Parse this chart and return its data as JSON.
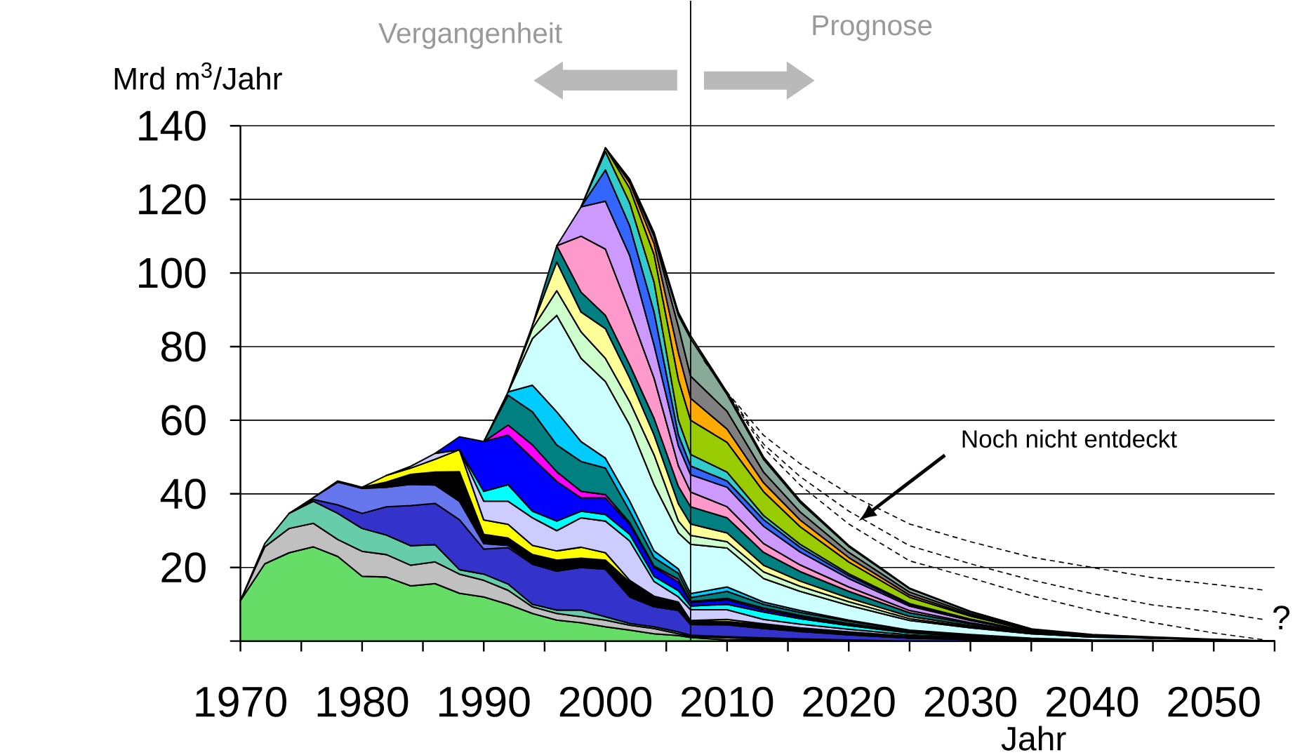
{
  "chart_data": {
    "type": "area",
    "stacked": true,
    "ylabel": "Mrd m$^{3}$/Jahr",
    "xlabel": "Jahr",
    "x": [
      1970,
      1972,
      1974,
      1976,
      1978,
      1980,
      1982,
      1984,
      1986,
      1988,
      1990,
      1992,
      1994,
      1996,
      1998,
      2000,
      2002,
      2004,
      2006,
      2007,
      2010,
      2013,
      2016,
      2020,
      2025,
      2030,
      2035,
      2040,
      2045,
      2050,
      2055
    ],
    "xlim": [
      1970,
      2055
    ],
    "xticks": [
      1970,
      {
        "value": 1975,
        "label": null
      },
      1980,
      {
        "value": 1985,
        "label": null
      },
      1990,
      {
        "value": 1995,
        "label": null
      },
      2000,
      {
        "value": 2005,
        "label": null
      },
      2010,
      {
        "value": 2015,
        "label": null
      },
      2020,
      {
        "value": 2025,
        "label": null
      },
      2030,
      {
        "value": 2035,
        "label": null
      },
      2040,
      {
        "value": 2045,
        "label": null
      },
      2050,
      {
        "value": 2055,
        "label": null
      }
    ],
    "ylim": [
      0,
      140
    ],
    "yticks": [
      {
        "value": 0,
        "label": null
      },
      20,
      40,
      60,
      80,
      100,
      120,
      140
    ],
    "grid": "y",
    "series": [
      {
        "color": "#66dd66",
        "values": [
          11,
          21,
          24,
          25.6,
          23,
          17.6,
          17.4,
          15,
          15.6,
          13,
          12,
          10,
          7.5,
          5.7,
          5,
          3.9,
          3,
          2,
          1.5,
          1,
          0.3,
          0.3,
          0.2,
          0.1,
          0,
          null,
          null,
          null,
          null,
          null,
          null
        ]
      },
      {
        "color": "#c0c0c0",
        "values": [
          0,
          4.6,
          6.6,
          6.4,
          4.6,
          6.8,
          6.1,
          5.6,
          5.9,
          5.2,
          4.5,
          3.8,
          1.8,
          1.8,
          1.6,
          1.8,
          1.3,
          1.4,
          0.5,
          0.3,
          0.6,
          0.3,
          0.2,
          0.1,
          0,
          null,
          null,
          null,
          null,
          null,
          null
        ]
      },
      {
        "color": "#66ccaa",
        "values": [
          0,
          0.9,
          4.1,
          6,
          7.1,
          6.2,
          5.3,
          5.3,
          4.7,
          1.2,
          1.7,
          1.7,
          0.7,
          0.9,
          1.8,
          0.9,
          0.5,
          0.5,
          0.5,
          0.3,
          0.3,
          0.3,
          0.2,
          0.1,
          0,
          null,
          null,
          null,
          null,
          null,
          null
        ]
      },
      {
        "color": "#3333cc",
        "values": [
          null,
          null,
          0,
          0.5,
          2.3,
          4.1,
          7.7,
          10.9,
          11.2,
          13.6,
          6.8,
          9.9,
          10.9,
          10.6,
          11.6,
          12.9,
          7.2,
          5.4,
          5.8,
          2.9,
          3.2,
          2.5,
          2,
          1.4,
          0.8,
          0.4,
          0.2,
          0.1,
          0,
          null,
          null
        ]
      },
      {
        "color": "#6677ee",
        "values": [
          null,
          null,
          0,
          0.5,
          6.2,
          6.8,
          5.3,
          5.8,
          5,
          5,
          1.5,
          0.6,
          0.4,
          0.4,
          0.4,
          0.4,
          0.3,
          0.2,
          0.2,
          0.1,
          0.2,
          0.2,
          0.1,
          0.1,
          0,
          null,
          null,
          null,
          null,
          null,
          null
        ]
      },
      {
        "color": "#000000",
        "values": [
          null,
          null,
          null,
          0,
          0.3,
          0.3,
          1.4,
          2.7,
          3.5,
          8,
          2.5,
          2,
          2.2,
          2.6,
          2.1,
          2.1,
          3.7,
          2.5,
          1.9,
          0.9,
          0.7,
          0.8,
          0.7,
          0.6,
          0.5,
          0.4,
          0.3,
          0.2,
          0.2,
          0.1,
          0
        ]
      },
      {
        "color": "#ffff00",
        "values": [
          null,
          null,
          null,
          null,
          null,
          0,
          1.8,
          1.7,
          3.5,
          6,
          3.9,
          3.7,
          2.5,
          2.5,
          3,
          2,
          0.5,
          0.2,
          0.2,
          0.1,
          0.6,
          0.3,
          0.2,
          0.1,
          0,
          null,
          null,
          null,
          null,
          null,
          null
        ]
      },
      {
        "color": "#ccccff",
        "values": [
          null,
          null,
          null,
          null,
          null,
          null,
          0,
          0.5,
          1.6,
          0,
          5.1,
          6.3,
          7.5,
          5.5,
          8,
          8.6,
          10.7,
          4,
          1.4,
          2.9,
          2.6,
          1.2,
          1,
          0.7,
          0.4,
          0.2,
          0.1,
          0,
          null,
          null,
          null
        ]
      },
      {
        "color": "#00ffff",
        "values": [
          null,
          null,
          null,
          null,
          null,
          null,
          null,
          null,
          null,
          0,
          2.7,
          4.5,
          1.8,
          2.6,
          1.8,
          1.8,
          1.8,
          1.4,
          1.7,
          1,
          1.5,
          2,
          1.5,
          1,
          0.5,
          0.3,
          0.1,
          0,
          null,
          null,
          null
        ]
      },
      {
        "color": "#0000ff",
        "values": [
          null,
          null,
          null,
          null,
          null,
          null,
          null,
          null,
          0,
          3.5,
          13.5,
          13.5,
          14.4,
          10.8,
          3.6,
          4.5,
          2.7,
          2.4,
          2.3,
          1,
          1.2,
          0.6,
          0.5,
          0.3,
          0.2,
          0.1,
          0,
          null,
          null,
          null,
          null
        ]
      },
      {
        "color": "#ff00ff",
        "values": [
          null,
          null,
          null,
          null,
          null,
          null,
          null,
          null,
          null,
          null,
          0,
          2.7,
          3.6,
          2.6,
          1.8,
          0.9,
          0.5,
          0.4,
          0.8,
          0.3,
          0.4,
          0.5,
          0.4,
          0.3,
          0.1,
          0.1,
          0,
          null,
          null,
          null,
          null
        ]
      },
      {
        "color": "#008080",
        "values": [
          null,
          null,
          null,
          null,
          null,
          null,
          null,
          null,
          null,
          null,
          0,
          8.1,
          9,
          7.3,
          8.1,
          7.2,
          3.1,
          2.3,
          1.6,
          1,
          1.9,
          1,
          0.8,
          0.6,
          0.3,
          0.2,
          0.1,
          0,
          null,
          null,
          null
        ]
      },
      {
        "color": "#00ccff",
        "values": [
          null,
          null,
          null,
          null,
          null,
          null,
          null,
          null,
          null,
          null,
          0,
          0.9,
          7.2,
          9,
          5.4,
          2.7,
          2.7,
          1.8,
          1.2,
          1.1,
          1.2,
          0.6,
          0.5,
          0.3,
          0.2,
          0.1,
          0,
          null,
          null,
          null,
          null
        ]
      },
      {
        "color": "#ccffff",
        "values": [
          null,
          null,
          null,
          null,
          null,
          null,
          null,
          null,
          null,
          null,
          null,
          0,
          12.7,
          26.2,
          22.6,
          20.8,
          20.7,
          18,
          9.8,
          13.4,
          10.6,
          6.4,
          5.2,
          4,
          2.6,
          1.8,
          1.2,
          0.8,
          0.6,
          0.3,
          0
        ]
      },
      {
        "color": "#ccffcc",
        "values": [
          null,
          null,
          null,
          null,
          null,
          null,
          null,
          null,
          null,
          null,
          null,
          0,
          2.7,
          6.7,
          7.2,
          6.3,
          6.3,
          8.1,
          3.2,
          2.4,
          1.7,
          1.8,
          1.4,
          1,
          0.5,
          0.3,
          0,
          null,
          null,
          null,
          null
        ]
      },
      {
        "color": "#ffff99",
        "values": [
          null,
          null,
          null,
          null,
          null,
          null,
          null,
          null,
          null,
          null,
          null,
          0,
          0.9,
          7.8,
          5.4,
          8.1,
          6.4,
          5.4,
          4.7,
          3.1,
          2.4,
          1.8,
          1.4,
          1,
          0.6,
          0.3,
          0.1,
          0,
          null,
          null,
          null
        ]
      },
      {
        "color": "#008080",
        "values": [
          null,
          null,
          null,
          null,
          null,
          null,
          null,
          null,
          null,
          null,
          null,
          null,
          0,
          4.4,
          5.4,
          3.6,
          3.6,
          4.5,
          4.7,
          4.7,
          4.1,
          3.5,
          2.6,
          1.8,
          1,
          0.5,
          0.2,
          0.1,
          0,
          null,
          null
        ]
      },
      {
        "color": "#ff99cc",
        "values": [
          null,
          null,
          null,
          null,
          null,
          null,
          null,
          null,
          null,
          null,
          null,
          null,
          null,
          0,
          15.2,
          18,
          14.4,
          10.9,
          5.6,
          4,
          3,
          2.4,
          1.8,
          1.2,
          0.6,
          0.3,
          0,
          null,
          null,
          null,
          null
        ]
      },
      {
        "color": "#cc99ff",
        "values": [
          null,
          null,
          null,
          null,
          null,
          null,
          null,
          null,
          null,
          null,
          null,
          null,
          null,
          0,
          8,
          13,
          15.3,
          9,
          5.4,
          4.7,
          5.3,
          4.7,
          3.5,
          2.3,
          1.2,
          0.6,
          0.2,
          0.1,
          0,
          null,
          null
        ]
      },
      {
        "color": "#3366ff",
        "values": [
          null,
          null,
          null,
          null,
          null,
          null,
          null,
          null,
          null,
          null,
          null,
          null,
          null,
          null,
          0,
          8.5,
          8.1,
          9,
          3,
          2.4,
          1.7,
          1.8,
          1.3,
          0.8,
          0.4,
          0.2,
          0,
          null,
          null,
          null,
          null
        ]
      },
      {
        "color": "#33cccc",
        "values": [
          null,
          null,
          null,
          null,
          null,
          null,
          null,
          null,
          null,
          null,
          null,
          null,
          null,
          null,
          0,
          5,
          6.2,
          8.1,
          4,
          3.1,
          2.4,
          1.1,
          0.8,
          0.5,
          0.3,
          0.2,
          0,
          null,
          null,
          null,
          null
        ]
      },
      {
        "color": "#99cc00",
        "values": [
          null,
          null,
          null,
          null,
          null,
          null,
          null,
          null,
          null,
          null,
          null,
          null,
          null,
          null,
          0,
          1,
          4,
          7.5,
          11,
          9.3,
          8.1,
          6.5,
          4.8,
          3.2,
          1.7,
          0.8,
          0.3,
          0.2,
          0.1,
          0,
          null
        ]
      },
      {
        "color": "#ffaa00",
        "values": [
          null,
          null,
          null,
          null,
          null,
          null,
          null,
          null,
          null,
          null,
          null,
          null,
          null,
          null,
          null,
          0,
          1.5,
          3,
          7.3,
          6,
          3.6,
          2.4,
          1.8,
          1.2,
          0.6,
          0.3,
          0,
          null,
          null,
          null,
          null
        ]
      },
      {
        "color": "#808080",
        "values": [
          null,
          null,
          null,
          null,
          null,
          null,
          null,
          null,
          null,
          null,
          null,
          null,
          null,
          null,
          null,
          0,
          0.5,
          2,
          7.1,
          6,
          4.8,
          2.9,
          2.2,
          1.4,
          0.8,
          0.4,
          0.2,
          0.1,
          0,
          null,
          null
        ]
      },
      {
        "color": "#88aa99",
        "values": [
          null,
          null,
          null,
          null,
          null,
          null,
          null,
          null,
          null,
          null,
          null,
          null,
          null,
          null,
          null,
          null,
          0,
          0.5,
          3.1,
          10.2,
          4.6,
          3.5,
          2.6,
          1.6,
          0.9,
          0.5,
          0.3,
          0.2,
          0.2,
          0.1,
          0
        ]
      },
      {
        "color": "#c0c0c0",
        "values": [
          null,
          null,
          null,
          null,
          null,
          null,
          null,
          null,
          null,
          null,
          null,
          null,
          null,
          null,
          null,
          0,
          0.5,
          0.5,
          0.8,
          0.8,
          0.6,
          0.6,
          0.5,
          0.3,
          0.2,
          0.1,
          0,
          null,
          null,
          null,
          null
        ]
      },
      {
        "type": "line",
        "color": "#000000",
        "line_style": "dashed",
        "x": [
          2008,
          2010,
          2013,
          2016,
          2020,
          2025,
          2030,
          2035,
          2040,
          2045,
          2050,
          2054
        ],
        "values": [
          76.7,
          67.6,
          55.9,
          48.2,
          40,
          31.8,
          27,
          22.8,
          20,
          17.2,
          15.4,
          13.9
        ]
      },
      {
        "type": "line",
        "color": "#000000",
        "line_style": "dashed",
        "x": [
          2008,
          2010,
          2013,
          2016,
          2020,
          2025,
          2030,
          2035,
          2040,
          2045,
          2050,
          2054
        ],
        "values": [
          76.7,
          67.6,
          53.5,
          44.7,
          35.3,
          25.9,
          21,
          16.6,
          12.9,
          9.8,
          8,
          5.9
        ]
      },
      {
        "type": "line",
        "color": "#000000",
        "line_style": "dashed",
        "x": [
          2008,
          2010,
          2013,
          2016,
          2020,
          2025,
          2030,
          2035,
          2040,
          2045,
          2050,
          2054
        ],
        "values": [
          76.7,
          67.6,
          52.4,
          42.4,
          31.8,
          21.8,
          17.2,
          12.3,
          8.3,
          5,
          2.2,
          0.4
        ]
      }
    ],
    "ref_lines": [
      {
        "axis": "x",
        "value": 2007,
        "color": "#000000"
      }
    ],
    "annotations": [
      "Vergangenheit",
      "Prognose",
      "Noch nicht entdeckt",
      "?"
    ]
  }
}
